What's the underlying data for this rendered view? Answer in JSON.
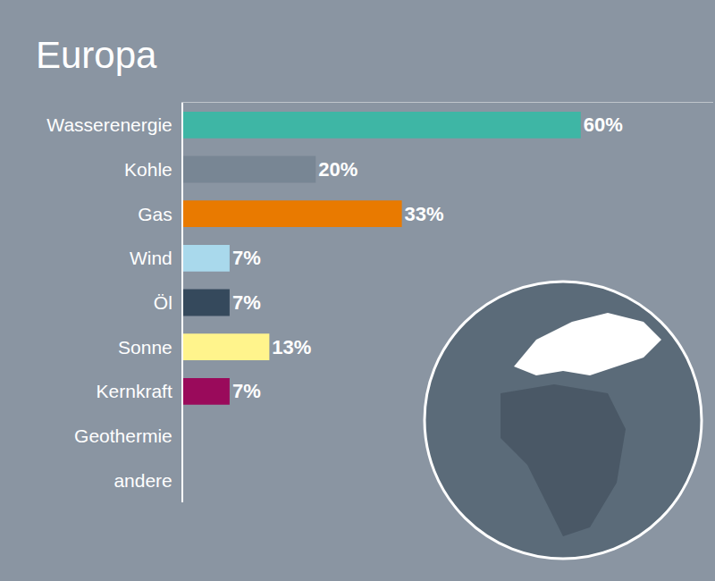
{
  "chart_data": {
    "type": "bar",
    "title": "Europa",
    "orientation": "horizontal",
    "categories": [
      "Wasserenergie",
      "Kohle",
      "Gas",
      "Wind",
      "Öl",
      "Sonne",
      "Kernkraft",
      "Geothermie",
      "andere"
    ],
    "values": [
      60,
      20,
      33,
      7,
      7,
      13,
      7,
      null,
      null
    ],
    "value_labels": [
      "60%",
      "20%",
      "33%",
      "7%",
      "7%",
      "13%",
      "7%",
      null,
      null
    ],
    "colors": [
      "#3eb6a5",
      "#788694",
      "#e97a00",
      "#a9d9ec",
      "#35495c",
      "#fff48c",
      "#9a0a5b",
      null,
      null
    ],
    "xlim": [
      0,
      80
    ],
    "xticks": [],
    "grid": false,
    "data_labels": true,
    "tick_labels": "y"
  }
}
